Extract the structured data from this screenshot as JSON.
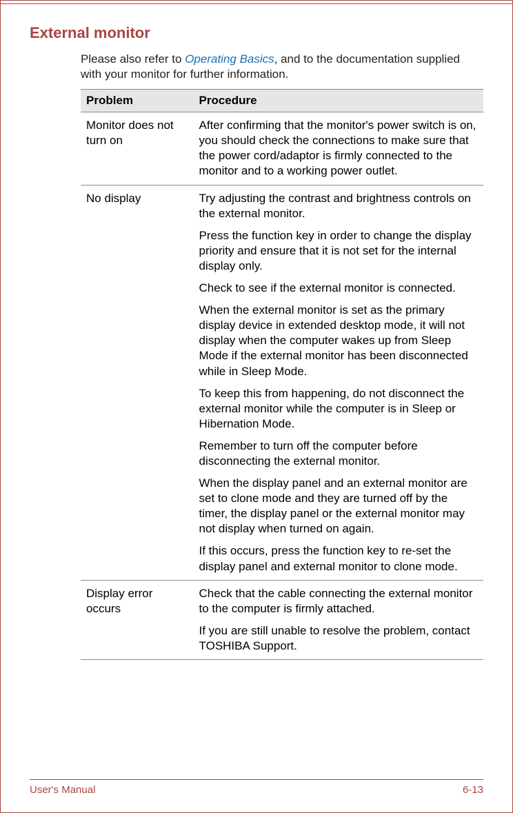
{
  "section": {
    "title": "External monitor"
  },
  "intro": {
    "pre": "Please also refer to ",
    "link": "Operating Basics",
    "post": ", and to the documentation supplied with your monitor for further information."
  },
  "table": {
    "headers": {
      "problem": "Problem",
      "procedure": "Procedure"
    },
    "rows": [
      {
        "problem": "Monitor does not turn on",
        "procedure": [
          "After confirming that the monitor's power switch is on, you should check the connections to make sure that the power cord/adaptor is firmly connected to the monitor and to a working power outlet."
        ]
      },
      {
        "problem": "No display",
        "procedure": [
          "Try adjusting the contrast and brightness controls on the external monitor.",
          "Press the function key in order to change the display priority and ensure that it is not set for the internal display only.",
          "Check to see if the external monitor is connected.",
          "When the external monitor is set as the primary display device in extended desktop mode, it will not display when the computer wakes up from Sleep Mode if the external monitor has been disconnected while in Sleep Mode.",
          "To keep this from happening, do not disconnect the external monitor while the computer is in Sleep or Hibernation Mode.",
          "Remember to turn off the computer before disconnecting the external monitor.",
          "When the display panel and an external monitor are set to clone mode and they are turned off by the timer, the display panel or the external monitor may not display when turned on again.",
          "If this occurs, press the function key to re-set the display panel and external monitor to clone mode."
        ]
      },
      {
        "problem": "Display error occurs",
        "procedure": [
          "Check that the cable connecting the external monitor to the computer is firmly attached.",
          "If you are still unable to resolve the problem, contact TOSHIBA Support."
        ]
      }
    ]
  },
  "footer": {
    "left": "User's Manual",
    "right": "6-13"
  }
}
